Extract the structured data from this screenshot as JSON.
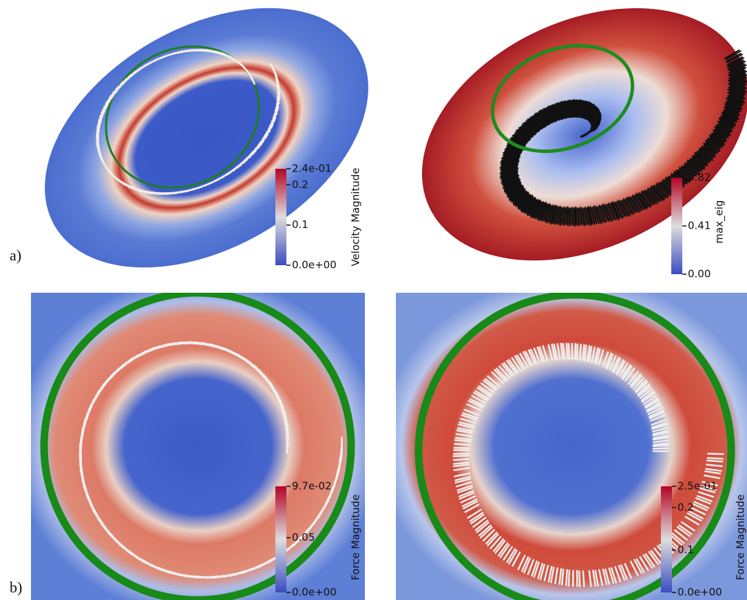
{
  "labels": [
    "a)",
    "b)"
  ],
  "panels": [
    {
      "colorbar": {
        "title": "Velocity Magnitude",
        "ticks": [
          {
            "value": 0.24,
            "label": "2.4e-01"
          },
          0.2,
          0.1,
          {
            "value": 0,
            "label": "0.0e+00"
          }
        ]
      }
    },
    {
      "colorbar": {
        "title": "max_eig",
        "ticks": [
          0.82,
          0.41,
          {
            "value": 0,
            "label": "0.00"
          }
        ]
      }
    },
    {
      "colorbar": {
        "title": "Force Magnitude",
        "ticks": [
          {
            "value": 0.097,
            "label": "9.7e-02"
          },
          0.05,
          {
            "value": 0,
            "label": "0.0e+00"
          }
        ]
      }
    },
    {
      "colorbar": {
        "title": "Force Magnitude",
        "ticks": [
          {
            "value": 0.25,
            "label": "2.5e-01"
          },
          0.2,
          0.1,
          {
            "value": 0,
            "label": "0.0e+00"
          }
        ]
      }
    }
  ]
}
